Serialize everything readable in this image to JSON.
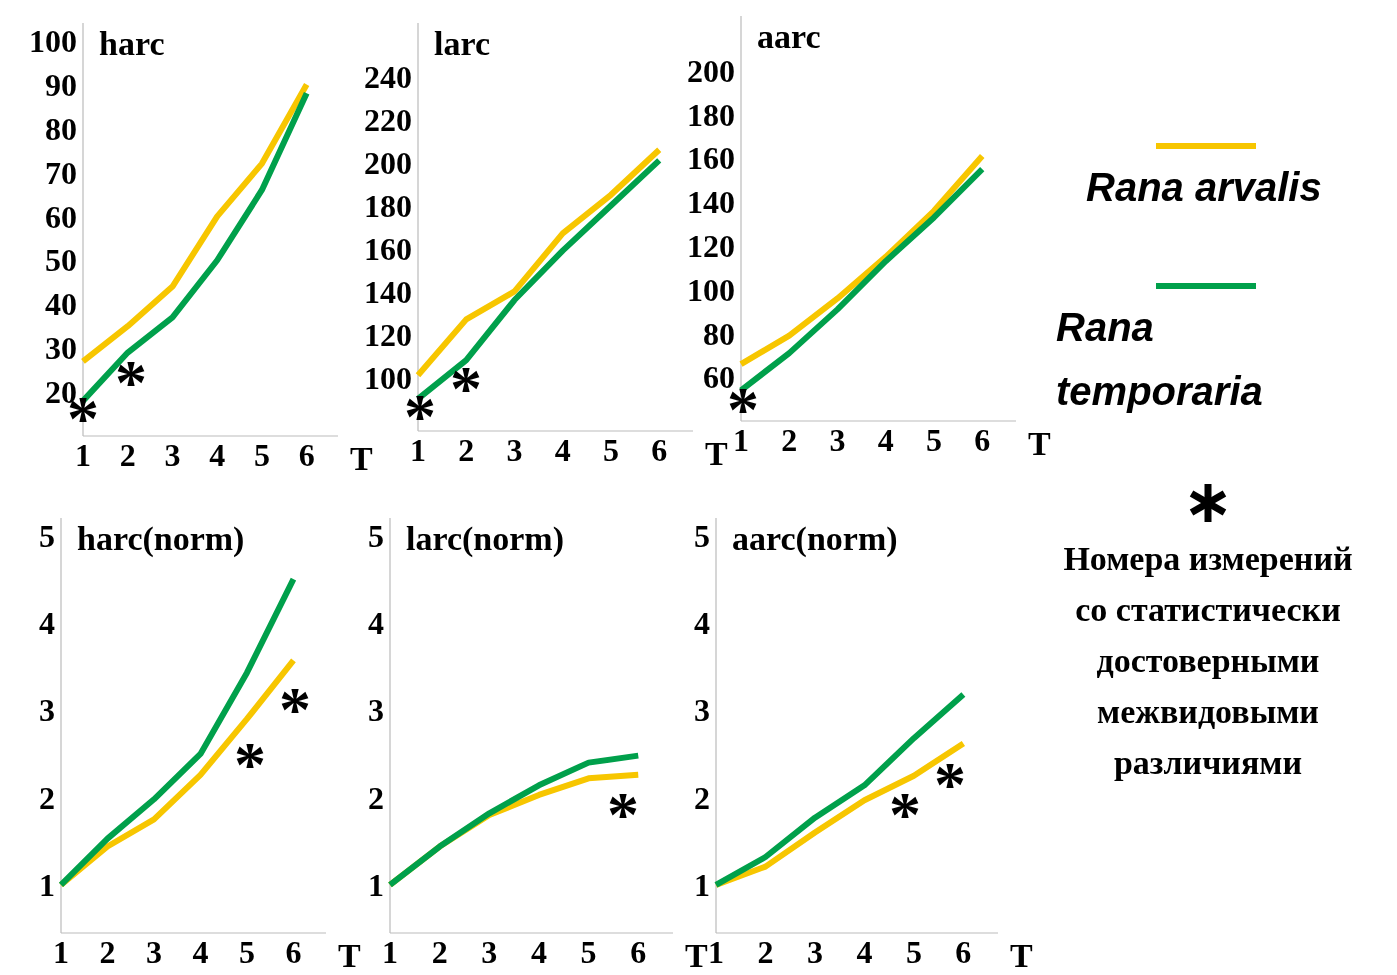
{
  "chart_data": [
    {
      "type": "line",
      "title": "harc",
      "xlabel": "T",
      "x": [
        1,
        2,
        3,
        4,
        5,
        6
      ],
      "xlim": [
        1,
        6.7
      ],
      "xticks": [
        1,
        2,
        3,
        4,
        5,
        6
      ],
      "ylim": [
        10,
        104
      ],
      "yticks": [
        20,
        30,
        40,
        50,
        60,
        70,
        80,
        90,
        100
      ],
      "series": [
        {
          "color": "#f7c600",
          "values": [
            27,
            35,
            44,
            60,
            72,
            90
          ]
        },
        {
          "color": "#00a04b",
          "values": [
            18,
            29,
            37,
            50,
            66,
            88
          ]
        }
      ],
      "annotations": [
        "*",
        "*"
      ]
    },
    {
      "type": "line",
      "title": "larc",
      "xlabel": "T",
      "x": [
        1,
        2,
        3,
        4,
        5,
        6
      ],
      "xlim": [
        1,
        6.7
      ],
      "xticks": [
        1,
        2,
        3,
        4,
        5,
        6
      ],
      "ylim": [
        75,
        265
      ],
      "yticks": [
        100,
        120,
        140,
        160,
        180,
        200,
        220,
        240
      ],
      "series": [
        {
          "color": "#f7c600",
          "values": [
            101,
            127,
            140,
            167,
            185,
            206
          ]
        },
        {
          "color": "#00a04b",
          "values": [
            90,
            108,
            136,
            159,
            180,
            201
          ]
        }
      ],
      "annotations": [
        "*",
        "*"
      ]
    },
    {
      "type": "line",
      "title": "aarc",
      "xlabel": "T",
      "x": [
        1,
        2,
        3,
        4,
        5,
        6
      ],
      "xlim": [
        1,
        6.7
      ],
      "xticks": [
        1,
        2,
        3,
        4,
        5,
        6
      ],
      "ylim": [
        40,
        225
      ],
      "yticks": [
        60,
        80,
        100,
        120,
        140,
        160,
        180,
        200
      ],
      "legend": "right",
      "series": [
        {
          "name": "Rana arvalis",
          "color": "#f7c600",
          "values": [
            66,
            79,
            96,
            115,
            136,
            161
          ]
        },
        {
          "name": "Rana temporaria",
          "color": "#00a04b",
          "values": [
            54,
            71,
            91,
            113,
            133,
            155
          ]
        }
      ],
      "annotations": [
        "*"
      ]
    },
    {
      "type": "line",
      "title": "harc(norm)",
      "xlabel": "T",
      "x": [
        1,
        2,
        3,
        4,
        5,
        6
      ],
      "xlim": [
        1,
        6.7
      ],
      "xticks": [
        1,
        2,
        3,
        4,
        5,
        6
      ],
      "ylim": [
        0.45,
        5.2
      ],
      "yticks": [
        1,
        2,
        3,
        4,
        5
      ],
      "series": [
        {
          "color": "#f7c600",
          "values": [
            1,
            1.44,
            1.75,
            2.26,
            2.9,
            3.57
          ]
        },
        {
          "color": "#00a04b",
          "values": [
            1,
            1.53,
            1.98,
            2.5,
            3.43,
            4.5
          ]
        }
      ],
      "annotations": [
        "*",
        "*"
      ]
    },
    {
      "type": "line",
      "title": "larc(norm)",
      "xlabel": "T",
      "x": [
        1,
        2,
        3,
        4,
        5,
        6
      ],
      "xlim": [
        1,
        6.7
      ],
      "xticks": [
        1,
        2,
        3,
        4,
        5,
        6
      ],
      "ylim": [
        0.45,
        5.2
      ],
      "yticks": [
        1,
        2,
        3,
        4,
        5
      ],
      "series": [
        {
          "color": "#f7c600",
          "values": [
            1,
            1.44,
            1.8,
            2.03,
            2.22,
            2.26
          ]
        },
        {
          "color": "#00a04b",
          "values": [
            1,
            1.44,
            1.82,
            2.14,
            2.4,
            2.48
          ]
        }
      ],
      "annotations": [
        "*"
      ]
    },
    {
      "type": "line",
      "title": "aarc(norm)",
      "xlabel": "T",
      "x": [
        1,
        2,
        3,
        4,
        5,
        6
      ],
      "xlim": [
        1,
        6.7
      ],
      "xticks": [
        1,
        2,
        3,
        4,
        5,
        6
      ],
      "ylim": [
        0.45,
        5.2
      ],
      "yticks": [
        1,
        2,
        3,
        4,
        5
      ],
      "series": [
        {
          "color": "#f7c600",
          "values": [
            1,
            1.21,
            1.6,
            1.97,
            2.25,
            2.62
          ]
        },
        {
          "color": "#00a04b",
          "values": [
            1,
            1.32,
            1.77,
            2.14,
            2.68,
            3.18
          ]
        }
      ],
      "annotations": [
        "*",
        "*",
        "Номера измерений со статистически достоверными межвидовыми различиями"
      ]
    }
  ]
}
